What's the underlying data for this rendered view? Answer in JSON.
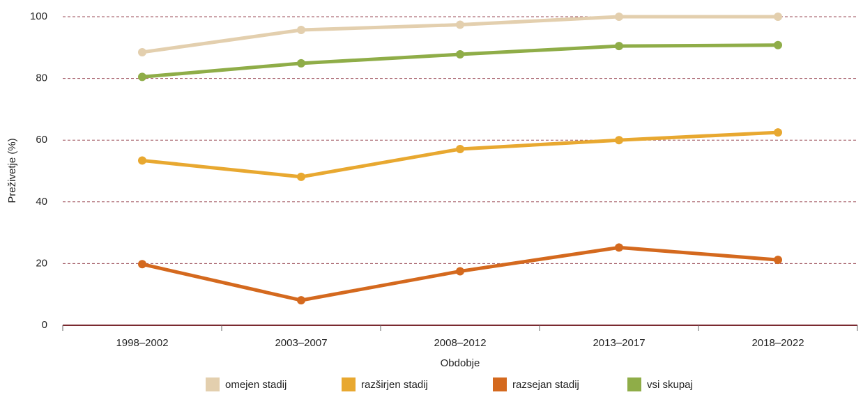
{
  "chart_data": {
    "type": "line",
    "x_label": "Obdobje",
    "y_label": "Preživetje (%)",
    "categories": [
      "1998–2002",
      "2003–2007",
      "2008–2012",
      "2013–2017",
      "2018–2022"
    ],
    "series": [
      {
        "name": "omejen stadij",
        "color": "#e3cfae",
        "values": [
          88.5,
          95.7,
          97.4,
          100,
          100
        ]
      },
      {
        "name": "razširjen stadij",
        "color": "#e8a830",
        "values": [
          53.4,
          48.1,
          57.1,
          60,
          62.5
        ]
      },
      {
        "name": "razsejan stadij",
        "color": "#d4691e",
        "values": [
          19.8,
          8.1,
          17.5,
          25.2,
          21.2
        ]
      },
      {
        "name": "vsi skupaj",
        "color": "#8fad48",
        "values": [
          80.5,
          84.9,
          87.8,
          90.5,
          90.8
        ]
      }
    ],
    "ylim": [
      0,
      100
    ],
    "yticks": [
      0,
      20,
      40,
      60,
      80,
      100
    ],
    "grid": true,
    "legend": "bottom"
  }
}
